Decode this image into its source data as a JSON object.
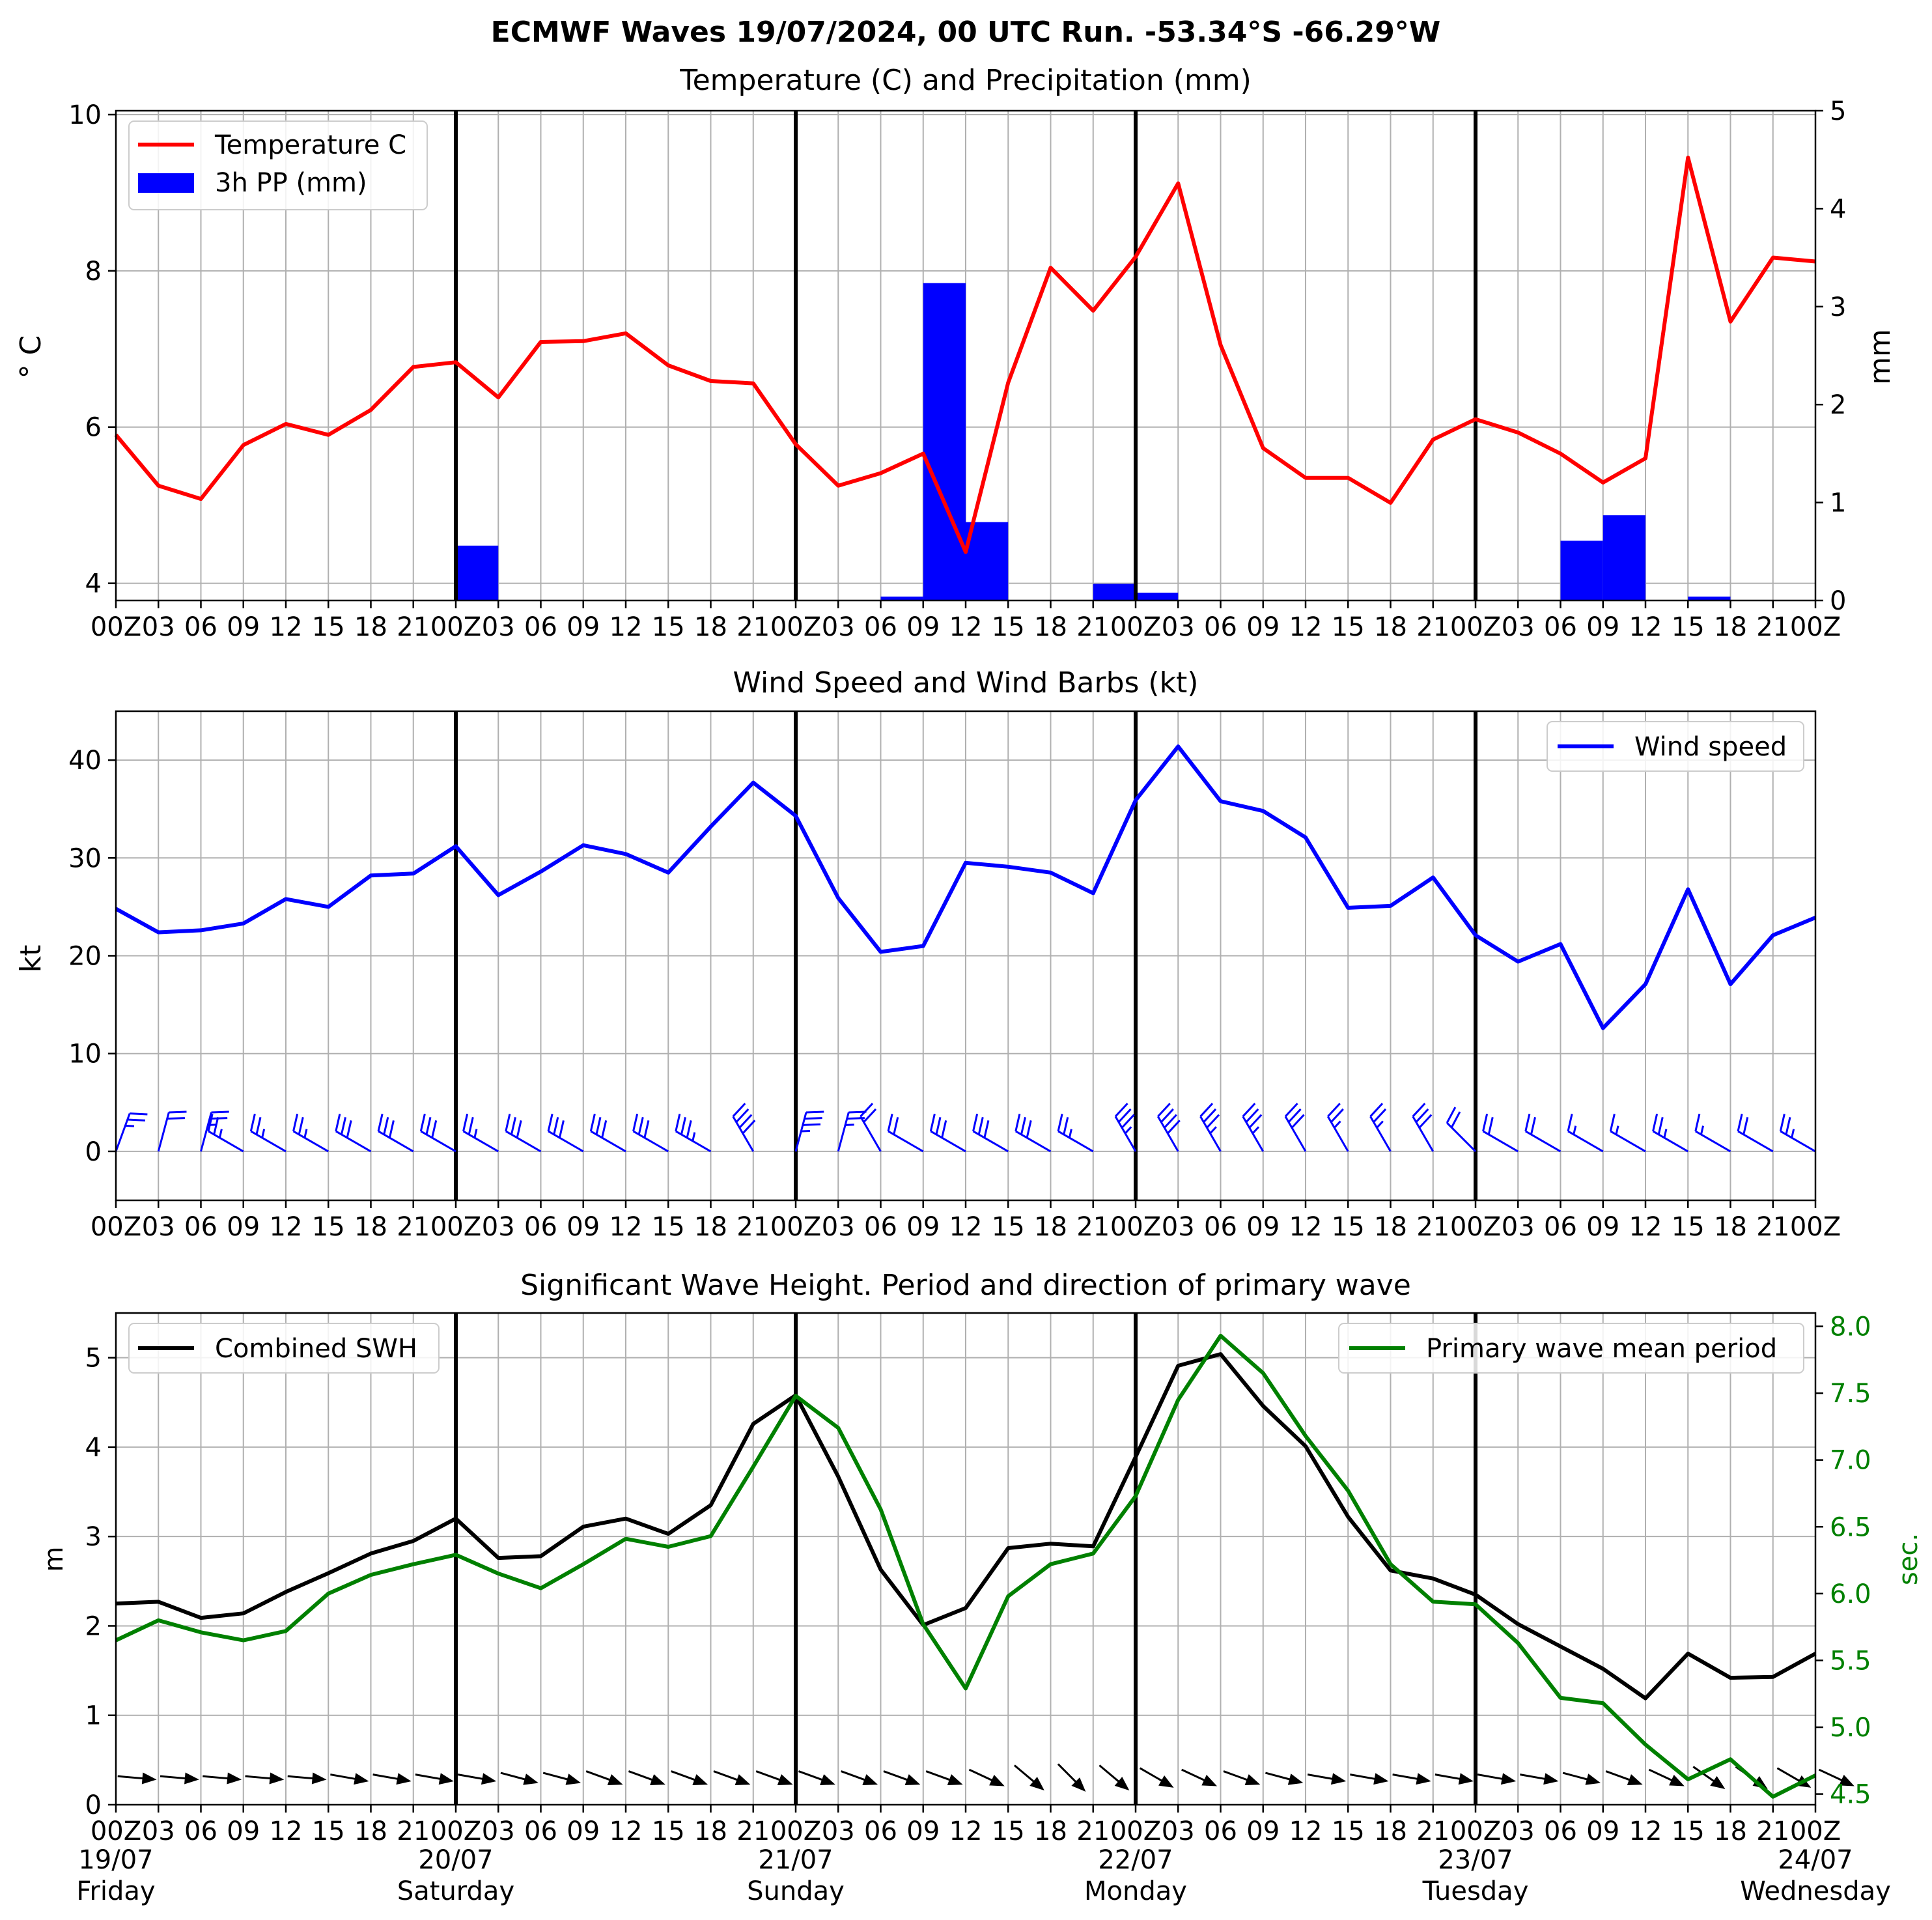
{
  "figure": {
    "suptitle": "ECMWF Waves 19/07/2024, 00 UTC Run. -53.34°S -66.29°W"
  },
  "colors": {
    "temperature": "#ff0000",
    "precip": "#0000ff",
    "wind": "#0000ff",
    "swh": "#000000",
    "period": "#008000",
    "grid": "#b0b0b0"
  },
  "axis_ticks": {
    "time_labels": [
      "00Z",
      "03",
      "06",
      "09",
      "12",
      "15",
      "18",
      "21",
      "00Z",
      "03",
      "06",
      "09",
      "12",
      "15",
      "18",
      "21",
      "00Z",
      "03",
      "06",
      "09",
      "12",
      "15",
      "18",
      "21",
      "00Z",
      "03",
      "06",
      "09",
      "12",
      "15",
      "18",
      "21",
      "00Z",
      "03",
      "06",
      "09",
      "12",
      "15",
      "18",
      "21",
      "00Z"
    ],
    "bottom_time_labels": [
      "00Z",
      "03",
      "06",
      "09",
      "12",
      "15",
      "18",
      "21",
      "00Z",
      "03",
      "06",
      "09",
      "12",
      "15",
      "18",
      "21",
      "00Z",
      "03",
      "06",
      "09",
      "12",
      "15",
      "18",
      "21",
      "00Z",
      "03",
      "06",
      "09",
      "12",
      "15",
      "18",
      "21",
      "00Z",
      "03",
      "06",
      "09",
      "12",
      "15",
      "18",
      "21",
      "00Z"
    ],
    "day_dates": [
      "19/07",
      "20/07",
      "21/07",
      "22/07",
      "23/07",
      "24/07"
    ],
    "day_names": [
      "Friday",
      "Saturday",
      "Sunday",
      "Monday",
      "Tuesday",
      "Wednesday"
    ],
    "day_boundaries": [
      8,
      16,
      24,
      32
    ]
  },
  "chart_data": [
    {
      "type": "line",
      "title": "Temperature (C) and Precipitation (mm)",
      "ylabel": "° C",
      "ylabel_right": "mm",
      "ylim": [
        3.78,
        10.05
      ],
      "ylim_right": [
        0,
        5
      ],
      "yticks": [
        4,
        6,
        8,
        10
      ],
      "yticks_right": [
        0,
        1,
        2,
        3,
        4,
        5
      ],
      "legend": {
        "placement": "upper left",
        "entries": [
          "Temperature C",
          "3h PP (mm)"
        ]
      },
      "x_step_hours": 3,
      "series": [
        {
          "name": "Temperature C",
          "kind": "line",
          "axis": "left",
          "values": [
            5.9,
            5.25,
            5.08,
            5.77,
            6.04,
            5.9,
            6.22,
            6.77,
            6.83,
            6.38,
            7.09,
            7.1,
            7.2,
            6.79,
            6.59,
            6.56,
            5.78,
            5.25,
            5.41,
            5.66,
            4.4,
            6.57,
            8.04,
            7.49,
            8.18,
            9.12,
            7.05,
            5.73,
            5.35,
            5.35,
            5.03,
            5.84,
            6.1,
            5.93,
            5.66,
            5.29,
            5.6,
            9.45,
            7.35,
            8.17,
            8.12
          ]
        },
        {
          "name": "3h PP (mm)",
          "kind": "bar",
          "axis": "right",
          "values": [
            0,
            0,
            0,
            0,
            0,
            0,
            0.005,
            0,
            0.56,
            0,
            0.005,
            0,
            0,
            0,
            0,
            0,
            0,
            0,
            0.04,
            3.24,
            0.8,
            0,
            0.005,
            0.17,
            0.08,
            0.005,
            0,
            0,
            0,
            0,
            0,
            0,
            0,
            0,
            0.61,
            0.87,
            0,
            0.04,
            0,
            0,
            0
          ]
        }
      ]
    },
    {
      "type": "line",
      "title": "Wind Speed and Wind Barbs (kt)",
      "ylabel": "kt",
      "ylim": [
        -5,
        45
      ],
      "yticks": [
        0,
        10,
        20,
        30,
        40
      ],
      "legend": {
        "placement": "upper right",
        "entries": [
          "Wind speed"
        ]
      },
      "series": [
        {
          "name": "Wind speed",
          "values": [
            24.8,
            22.4,
            22.6,
            23.3,
            25.8,
            25,
            28.2,
            28.4,
            31.2,
            26.2,
            28.6,
            31.3,
            30.4,
            28.5,
            33.2,
            37.7,
            34.3,
            25.9,
            20.4,
            21,
            29.5,
            29.1,
            28.5,
            26.4,
            35.9,
            41.4,
            35.8,
            34.8,
            32.1,
            24.9,
            25.1,
            28,
            22.1,
            19.4,
            21.2,
            12.6,
            17.1,
            26.8,
            17.1,
            22.1,
            23.9
          ]
        }
      ],
      "barb_direction_from_deg": [
        20,
        15,
        15,
        300,
        300,
        300,
        300,
        300,
        300,
        300,
        300,
        300,
        300,
        300,
        300,
        330,
        15,
        15,
        330,
        300,
        300,
        300,
        300,
        300,
        330,
        330,
        330,
        330,
        330,
        330,
        330,
        330,
        315,
        300,
        300,
        300,
        300,
        300,
        300,
        300,
        300
      ]
    },
    {
      "type": "line",
      "title": "Significant Wave Height. Period and direction of primary wave",
      "ylabel": "m",
      "ylabel_right": "sec.",
      "ylim": [
        0,
        5.5
      ],
      "ylim_right": [
        4.42,
        8.1
      ],
      "yticks": [
        0,
        1,
        2,
        3,
        4,
        5
      ],
      "yticks_right": [
        4.5,
        5.0,
        5.5,
        6.0,
        6.5,
        7.0,
        7.5,
        8.0
      ],
      "legends": [
        {
          "placement": "upper left",
          "entries": [
            "Combined SWH"
          ]
        },
        {
          "placement": "upper right",
          "entries": [
            "Primary wave mean period"
          ]
        }
      ],
      "series": [
        {
          "name": "Combined SWH",
          "axis": "left",
          "values": [
            2.25,
            2.27,
            2.09,
            2.14,
            2.38,
            2.59,
            2.81,
            2.95,
            3.2,
            2.76,
            2.78,
            3.11,
            3.2,
            3.03,
            3.35,
            4.26,
            4.58,
            3.67,
            2.63,
            2.01,
            2.2,
            2.87,
            2.92,
            2.89,
            3.89,
            4.91,
            5.04,
            4.46,
            4.01,
            3.22,
            2.62,
            2.53,
            2.35,
            2.02,
            1.77,
            1.52,
            1.19,
            1.69,
            1.42,
            1.43,
            1.69
          ]
        },
        {
          "name": "Primary wave mean period",
          "axis": "right",
          "values": [
            5.65,
            5.8,
            5.71,
            5.65,
            5.72,
            6.0,
            6.14,
            6.22,
            6.29,
            6.15,
            6.04,
            6.22,
            6.41,
            6.35,
            6.43,
            6.95,
            7.48,
            7.24,
            6.63,
            5.77,
            5.29,
            5.98,
            6.22,
            6.3,
            6.73,
            7.45,
            7.93,
            7.65,
            7.18,
            6.77,
            6.22,
            5.94,
            5.92,
            5.63,
            5.22,
            5.18,
            4.87,
            4.61,
            4.76,
            4.48,
            4.64
          ]
        }
      ],
      "wave_direction_to_deg": [
        95,
        95,
        95,
        95,
        95,
        100,
        100,
        100,
        100,
        105,
        105,
        110,
        110,
        110,
        110,
        110,
        110,
        110,
        110,
        110,
        115,
        130,
        135,
        130,
        120,
        115,
        110,
        105,
        100,
        100,
        100,
        100,
        100,
        100,
        105,
        110,
        115,
        125,
        125,
        120,
        115
      ]
    }
  ]
}
